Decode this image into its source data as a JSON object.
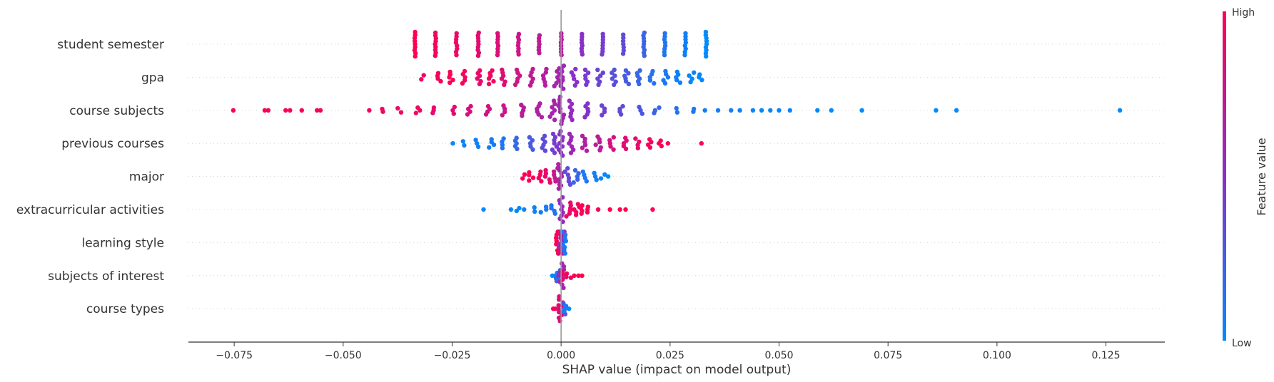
{
  "chart_data": {
    "type": "scatter",
    "subtype": "shap-beeswarm-summary",
    "title": "",
    "xlabel": "SHAP value (impact on model output)",
    "xlim": [
      -0.0855,
      0.1385
    ],
    "xticks": [
      -0.075,
      -0.05,
      -0.025,
      0.0,
      0.025,
      0.05,
      0.075,
      0.1,
      0.125
    ],
    "xtick_labels": [
      "−0.075",
      "−0.050",
      "−0.025",
      "0.000",
      "0.025",
      "0.050",
      "0.075",
      "0.100",
      "0.125"
    ],
    "zero_line": 0.0,
    "grid": false,
    "legend": "colorbar-right",
    "colorbar": {
      "title": "Feature value",
      "high_label": "High",
      "low_label": "Low",
      "high_color": "#ff0052",
      "low_color": "#008bfb"
    },
    "features": [
      {
        "name": "student semester",
        "points": [
          {
            "x": -0.0335,
            "v": 1.0,
            "w": 0.9
          },
          {
            "x": -0.0288,
            "v": 0.95,
            "w": 0.85
          },
          {
            "x": -0.024,
            "v": 0.92,
            "w": 0.8
          },
          {
            "x": -0.019,
            "v": 0.88,
            "w": 0.85
          },
          {
            "x": -0.0145,
            "v": 0.84,
            "w": 0.8
          },
          {
            "x": -0.0098,
            "v": 0.78,
            "w": 0.75
          },
          {
            "x": -0.005,
            "v": 0.72,
            "w": 0.65
          },
          {
            "x": 0.0,
            "v": 0.68,
            "w": 0.8
          },
          {
            "x": 0.0048,
            "v": 0.5,
            "w": 0.75
          },
          {
            "x": 0.0095,
            "v": 0.42,
            "w": 0.75
          },
          {
            "x": 0.0143,
            "v": 0.34,
            "w": 0.7
          },
          {
            "x": 0.019,
            "v": 0.22,
            "w": 0.85
          },
          {
            "x": 0.0238,
            "v": 0.12,
            "w": 0.8
          },
          {
            "x": 0.0285,
            "v": 0.06,
            "w": 0.8
          },
          {
            "x": 0.0333,
            "v": 0.0,
            "w": 0.9
          }
        ],
        "distribution": {
          "min": -0.0335,
          "max": 0.0333,
          "pattern": "discrete-columns",
          "trend": "high-left"
        }
      },
      {
        "name": "gpa",
        "points": [
          {
            "x": -0.0315,
            "v": 0.92,
            "w": 0.15
          },
          {
            "x": -0.028,
            "v": 0.95,
            "w": 0.3
          },
          {
            "x": -0.025,
            "v": 0.98,
            "w": 0.4
          },
          {
            "x": -0.022,
            "v": 0.96,
            "w": 0.45
          },
          {
            "x": -0.019,
            "v": 0.9,
            "w": 0.5
          },
          {
            "x": -0.016,
            "v": 0.94,
            "w": 0.5
          },
          {
            "x": -0.013,
            "v": 0.85,
            "w": 0.55
          },
          {
            "x": -0.01,
            "v": 0.78,
            "w": 0.55
          },
          {
            "x": -0.007,
            "v": 0.72,
            "w": 0.6
          },
          {
            "x": -0.004,
            "v": 0.68,
            "w": 0.6
          },
          {
            "x": -0.001,
            "v": 0.62,
            "w": 0.65
          },
          {
            "x": 0.0,
            "v": 0.58,
            "w": 0.85
          },
          {
            "x": 0.003,
            "v": 0.5,
            "w": 0.6
          },
          {
            "x": 0.006,
            "v": 0.44,
            "w": 0.55
          },
          {
            "x": 0.009,
            "v": 0.38,
            "w": 0.55
          },
          {
            "x": 0.012,
            "v": 0.32,
            "w": 0.55
          },
          {
            "x": 0.015,
            "v": 0.26,
            "w": 0.5
          },
          {
            "x": 0.018,
            "v": 0.2,
            "w": 0.5
          },
          {
            "x": 0.021,
            "v": 0.14,
            "w": 0.45
          },
          {
            "x": 0.024,
            "v": 0.1,
            "w": 0.45
          },
          {
            "x": 0.027,
            "v": 0.06,
            "w": 0.4
          },
          {
            "x": 0.03,
            "v": 0.04,
            "w": 0.35
          },
          {
            "x": 0.032,
            "v": 0.02,
            "w": 0.2
          }
        ],
        "distribution": {
          "min": -0.0315,
          "max": 0.0322,
          "pattern": "dense-continuous",
          "trend": "high-left"
        }
      },
      {
        "name": "course subjects",
        "points": [
          {
            "x": -0.0752,
            "v": 1.0,
            "w": 0.0
          },
          {
            "x": -0.068,
            "v": 0.98,
            "w": 0.0
          },
          {
            "x": -0.0672,
            "v": 0.98,
            "w": 0.0
          },
          {
            "x": -0.0632,
            "v": 0.97,
            "w": 0.0
          },
          {
            "x": -0.0622,
            "v": 0.97,
            "w": 0.0
          },
          {
            "x": -0.0595,
            "v": 0.96,
            "w": 0.0
          },
          {
            "x": -0.056,
            "v": 0.95,
            "w": 0.0
          },
          {
            "x": -0.0552,
            "v": 0.95,
            "w": 0.0
          },
          {
            "x": -0.044,
            "v": 0.95,
            "w": 0.0
          },
          {
            "x": -0.0405,
            "v": 0.94,
            "w": 0.1
          },
          {
            "x": -0.037,
            "v": 0.93,
            "w": 0.15
          },
          {
            "x": -0.033,
            "v": 0.92,
            "w": 0.2
          },
          {
            "x": -0.029,
            "v": 0.9,
            "w": 0.2
          },
          {
            "x": -0.025,
            "v": 0.86,
            "w": 0.25
          },
          {
            "x": -0.021,
            "v": 0.82,
            "w": 0.3
          },
          {
            "x": -0.017,
            "v": 0.8,
            "w": 0.3
          },
          {
            "x": -0.013,
            "v": 0.76,
            "w": 0.35
          },
          {
            "x": -0.009,
            "v": 0.7,
            "w": 0.4
          },
          {
            "x": -0.005,
            "v": 0.66,
            "w": 0.5
          },
          {
            "x": -0.002,
            "v": 0.62,
            "w": 0.7
          },
          {
            "x": 0.0,
            "v": 0.6,
            "w": 1.0
          },
          {
            "x": 0.0025,
            "v": 0.55,
            "w": 0.7
          },
          {
            "x": 0.006,
            "v": 0.48,
            "w": 0.5
          },
          {
            "x": 0.01,
            "v": 0.4,
            "w": 0.35
          },
          {
            "x": 0.014,
            "v": 0.34,
            "w": 0.3
          },
          {
            "x": 0.018,
            "v": 0.28,
            "w": 0.25
          },
          {
            "x": 0.022,
            "v": 0.2,
            "w": 0.2
          },
          {
            "x": 0.026,
            "v": 0.14,
            "w": 0.15
          },
          {
            "x": 0.03,
            "v": 0.1,
            "w": 0.1
          },
          {
            "x": 0.033,
            "v": 0.08,
            "w": 0.0
          },
          {
            "x": 0.036,
            "v": 0.06,
            "w": 0.0
          },
          {
            "x": 0.039,
            "v": 0.05,
            "w": 0.0
          },
          {
            "x": 0.041,
            "v": 0.04,
            "w": 0.0
          },
          {
            "x": 0.044,
            "v": 0.04,
            "w": 0.0
          },
          {
            "x": 0.046,
            "v": 0.03,
            "w": 0.0
          },
          {
            "x": 0.048,
            "v": 0.02,
            "w": 0.0
          },
          {
            "x": 0.05,
            "v": 0.02,
            "w": 0.0
          },
          {
            "x": 0.0525,
            "v": 0.02,
            "w": 0.0
          },
          {
            "x": 0.0588,
            "v": 0.01,
            "w": 0.0
          },
          {
            "x": 0.062,
            "v": 0.01,
            "w": 0.0
          },
          {
            "x": 0.069,
            "v": 0.01,
            "w": 0.0
          },
          {
            "x": 0.086,
            "v": 0.0,
            "w": 0.0
          },
          {
            "x": 0.0907,
            "v": 0.0,
            "w": 0.0
          },
          {
            "x": 0.1282,
            "v": 0.0,
            "w": 0.0
          }
        ],
        "distribution": {
          "min": -0.0752,
          "max": 0.1282,
          "pattern": "long-tails",
          "trend": "high-left"
        }
      },
      {
        "name": "previous courses",
        "points": [
          {
            "x": -0.0245,
            "v": 0.02,
            "w": 0.05
          },
          {
            "x": -0.022,
            "v": 0.03,
            "w": 0.15
          },
          {
            "x": -0.019,
            "v": 0.05,
            "w": 0.25
          },
          {
            "x": -0.016,
            "v": 0.08,
            "w": 0.3
          },
          {
            "x": -0.013,
            "v": 0.12,
            "w": 0.35
          },
          {
            "x": -0.01,
            "v": 0.18,
            "w": 0.4
          },
          {
            "x": -0.007,
            "v": 0.26,
            "w": 0.45
          },
          {
            "x": -0.004,
            "v": 0.34,
            "w": 0.55
          },
          {
            "x": -0.0015,
            "v": 0.42,
            "w": 0.7
          },
          {
            "x": 0.0,
            "v": 0.5,
            "w": 0.9
          },
          {
            "x": 0.0025,
            "v": 0.58,
            "w": 0.7
          },
          {
            "x": 0.0055,
            "v": 0.66,
            "w": 0.55
          },
          {
            "x": 0.0085,
            "v": 0.72,
            "w": 0.5
          },
          {
            "x": 0.0115,
            "v": 0.8,
            "w": 0.45
          },
          {
            "x": 0.0145,
            "v": 0.86,
            "w": 0.4
          },
          {
            "x": 0.0175,
            "v": 0.9,
            "w": 0.35
          },
          {
            "x": 0.0205,
            "v": 0.94,
            "w": 0.3
          },
          {
            "x": 0.023,
            "v": 0.97,
            "w": 0.2
          },
          {
            "x": 0.0245,
            "v": 0.98,
            "w": 0.0
          },
          {
            "x": 0.0322,
            "v": 1.0,
            "w": 0.0
          }
        ],
        "distribution": {
          "min": -0.0245,
          "max": 0.0322,
          "pattern": "dense-continuous",
          "trend": "high-right"
        }
      },
      {
        "name": "major",
        "points": [
          {
            "x": -0.009,
            "v": 1.0,
            "w": 0.15
          },
          {
            "x": -0.007,
            "v": 0.98,
            "w": 0.3
          },
          {
            "x": -0.005,
            "v": 0.95,
            "w": 0.35
          },
          {
            "x": -0.003,
            "v": 0.9,
            "w": 0.45
          },
          {
            "x": -0.001,
            "v": 0.75,
            "w": 0.6
          },
          {
            "x": 0.0,
            "v": 0.62,
            "w": 0.9
          },
          {
            "x": 0.0015,
            "v": 0.35,
            "w": 0.6
          },
          {
            "x": 0.0035,
            "v": 0.2,
            "w": 0.45
          },
          {
            "x": 0.0055,
            "v": 0.1,
            "w": 0.35
          },
          {
            "x": 0.0075,
            "v": 0.06,
            "w": 0.25
          },
          {
            "x": 0.0095,
            "v": 0.03,
            "w": 0.15
          },
          {
            "x": 0.0108,
            "v": 0.0,
            "w": 0.0
          }
        ],
        "distribution": {
          "min": -0.009,
          "max": 0.0108,
          "pattern": "compact",
          "trend": "high-left"
        }
      },
      {
        "name": "extracurricular activities",
        "points": [
          {
            "x": -0.0178,
            "v": 0.0,
            "w": 0.0
          },
          {
            "x": -0.0115,
            "v": 0.02,
            "w": 0.0
          },
          {
            "x": -0.01,
            "v": 0.02,
            "w": 0.1
          },
          {
            "x": -0.0085,
            "v": 0.04,
            "w": 0.0
          },
          {
            "x": -0.0058,
            "v": 0.05,
            "w": 0.15
          },
          {
            "x": -0.004,
            "v": 0.08,
            "w": 0.2
          },
          {
            "x": -0.002,
            "v": 0.12,
            "w": 0.3
          },
          {
            "x": 0.0,
            "v": 0.55,
            "w": 0.9
          },
          {
            "x": 0.0018,
            "v": 0.9,
            "w": 0.5
          },
          {
            "x": 0.0035,
            "v": 0.95,
            "w": 0.4
          },
          {
            "x": 0.005,
            "v": 0.97,
            "w": 0.3
          },
          {
            "x": 0.0065,
            "v": 0.98,
            "w": 0.2
          },
          {
            "x": 0.0085,
            "v": 1.0,
            "w": 0.0
          },
          {
            "x": 0.0112,
            "v": 1.0,
            "w": 0.0
          },
          {
            "x": 0.0135,
            "v": 1.0,
            "w": 0.0
          },
          {
            "x": 0.0148,
            "v": 1.0,
            "w": 0.0
          },
          {
            "x": 0.021,
            "v": 1.0,
            "w": 0.0
          }
        ],
        "distribution": {
          "min": -0.0178,
          "max": 0.021,
          "pattern": "compact",
          "trend": "high-right"
        }
      },
      {
        "name": "learning style",
        "points": [
          {
            "x": -0.0006,
            "v": 1.0,
            "w": 0.8
          },
          {
            "x": -0.0002,
            "v": 0.9,
            "w": 0.8
          },
          {
            "x": 0.0002,
            "v": 0.6,
            "w": 0.8
          },
          {
            "x": 0.0006,
            "v": 0.1,
            "w": 0.8
          }
        ],
        "distribution": {
          "min": -0.0006,
          "max": 0.0006,
          "pattern": "narrow",
          "trend": "mixed"
        }
      },
      {
        "name": "subjects of interest",
        "points": [
          {
            "x": -0.002,
            "v": 0.0,
            "w": 0.0
          },
          {
            "x": -0.0012,
            "v": 0.05,
            "w": 0.2
          },
          {
            "x": -0.0005,
            "v": 0.2,
            "w": 0.4
          },
          {
            "x": 0.0,
            "v": 0.6,
            "w": 0.9
          },
          {
            "x": 0.0008,
            "v": 0.9,
            "w": 0.3
          },
          {
            "x": 0.0018,
            "v": 0.95,
            "w": 0.15
          },
          {
            "x": 0.003,
            "v": 1.0,
            "w": 0.0
          },
          {
            "x": 0.004,
            "v": 1.0,
            "w": 0.0
          },
          {
            "x": 0.0048,
            "v": 1.0,
            "w": 0.0
          }
        ],
        "distribution": {
          "min": -0.002,
          "max": 0.0048,
          "pattern": "narrow",
          "trend": "high-right"
        }
      },
      {
        "name": "course types",
        "points": [
          {
            "x": -0.0018,
            "v": 1.0,
            "w": 0.0
          },
          {
            "x": -0.0008,
            "v": 0.95,
            "w": 0.25
          },
          {
            "x": 0.0,
            "v": 0.85,
            "w": 0.9
          },
          {
            "x": 0.0006,
            "v": 0.3,
            "w": 0.4
          },
          {
            "x": 0.0012,
            "v": 0.1,
            "w": 0.2
          },
          {
            "x": 0.0018,
            "v": 0.0,
            "w": 0.0
          }
        ],
        "distribution": {
          "min": -0.0018,
          "max": 0.0018,
          "pattern": "narrow",
          "trend": "high-left"
        }
      }
    ]
  }
}
